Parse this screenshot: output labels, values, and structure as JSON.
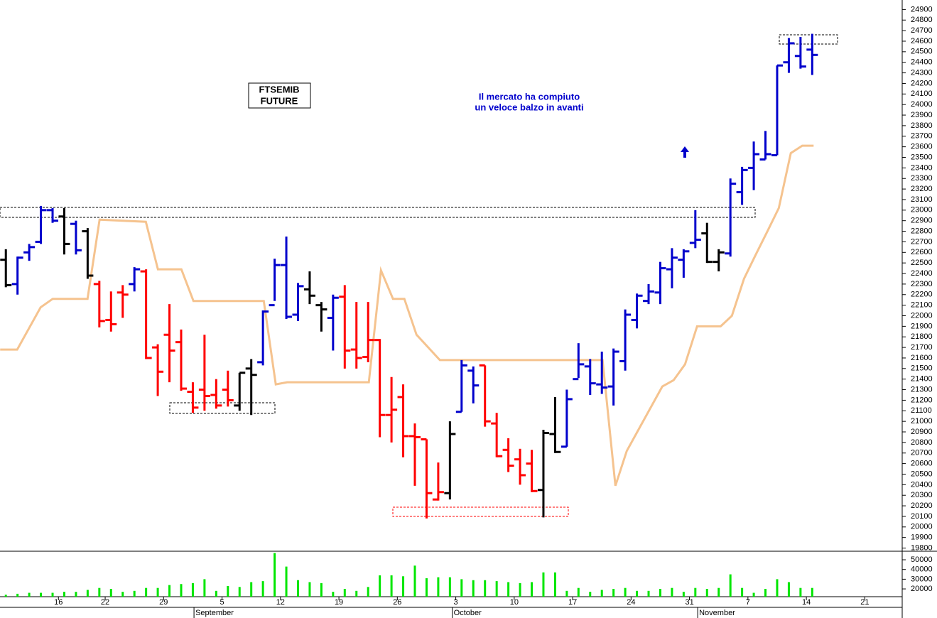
{
  "chart_data": {
    "type": "ohlc",
    "title_lines": [
      "FTSEMIB",
      "FUTURE"
    ],
    "annotation_lines": [
      "Il mercato ha compiuto",
      "un veloce balzo in avanti"
    ],
    "open": [
      22530,
      22300,
      22600,
      22700,
      23000,
      22940,
      22870,
      22800,
      22300,
      21960,
      22220,
      22300,
      22420,
      21700,
      21820,
      21750,
      21280,
      21300,
      21250,
      21300,
      21150,
      21500,
      21560,
      22100,
      22480,
      22010,
      22250,
      22100,
      21980,
      22180,
      21680,
      21610,
      21770,
      21060,
      21230,
      20860,
      20830,
      20260,
      20320,
      21090,
      21480,
      21530,
      20980,
      20730,
      20640,
      20600,
      20350,
      20880,
      20760,
      21400,
      21520,
      21350,
      21330,
      21570,
      21960,
      22140,
      22220,
      22440,
      22530,
      22690,
      22780,
      22510,
      22590,
      23170,
      23400,
      23480,
      23520,
      24400,
      24460,
      24520
    ],
    "high": [
      22630,
      22560,
      22680,
      23040,
      23020,
      23020,
      22900,
      22830,
      22330,
      22230,
      22290,
      22460,
      22440,
      21730,
      22110,
      21870,
      21370,
      21820,
      21400,
      21480,
      21460,
      21590,
      22050,
      22540,
      22750,
      22310,
      22420,
      22130,
      22200,
      22290,
      22130,
      22130,
      21780,
      21420,
      21350,
      20980,
      20830,
      20610,
      21000,
      21580,
      21520,
      21530,
      21080,
      20840,
      20740,
      20730,
      20920,
      21230,
      21300,
      21740,
      21590,
      21660,
      21690,
      22060,
      22210,
      22300,
      22510,
      22640,
      22630,
      23000,
      22880,
      22630,
      23300,
      23410,
      23650,
      23750,
      24370,
      24630,
      24640,
      24670
    ],
    "low": [
      22270,
      22200,
      22520,
      22680,
      22880,
      22580,
      22580,
      22350,
      21890,
      21850,
      21980,
      22230,
      21590,
      21240,
      21370,
      21290,
      21080,
      21100,
      21120,
      21140,
      21100,
      21060,
      21530,
      22140,
      21970,
      21950,
      22110,
      21850,
      21670,
      21500,
      21500,
      21560,
      20850,
      20800,
      20660,
      20390,
      20080,
      20250,
      20260,
      21090,
      21170,
      20950,
      20660,
      20520,
      20400,
      20330,
      20090,
      20700,
      20760,
      21410,
      21250,
      21260,
      21150,
      21480,
      21880,
      22110,
      22110,
      22260,
      22360,
      22640,
      22500,
      22420,
      22560,
      23050,
      23190,
      23480,
      23520,
      24300,
      24340,
      24280
    ],
    "close": [
      22290,
      22550,
      22650,
      23000,
      22900,
      22680,
      22620,
      22380,
      21950,
      21920,
      22200,
      22440,
      21600,
      21470,
      21670,
      21310,
      21130,
      21240,
      21150,
      21200,
      21460,
      21440,
      22040,
      22480,
      21990,
      22280,
      22190,
      22060,
      22170,
      21670,
      21600,
      21770,
      21060,
      21110,
      20860,
      20850,
      20320,
      20330,
      20880,
      21530,
      21340,
      21000,
      20670,
      20580,
      20490,
      20340,
      20890,
      20710,
      21210,
      21540,
      21360,
      21320,
      21660,
      22010,
      22190,
      22230,
      22450,
      22550,
      22610,
      22720,
      22510,
      22600,
      23250,
      23380,
      23530,
      23530,
      24370,
      24580,
      24360,
      24470
    ],
    "bar_colors": [
      "#000",
      "#00c",
      "#00c",
      "#00c",
      "#00c",
      "#000",
      "#00c",
      "#000",
      "#f00",
      "#f00",
      "#f00",
      "#00c",
      "#f00",
      "#f00",
      "#f00",
      "#f00",
      "#f00",
      "#f00",
      "#f00",
      "#f00",
      "#000",
      "#000",
      "#00c",
      "#00c",
      "#00c",
      "#00c",
      "#000",
      "#000",
      "#00c",
      "#f00",
      "#f00",
      "#f00",
      "#f00",
      "#f00",
      "#f00",
      "#f00",
      "#f00",
      "#f00",
      "#000",
      "#00c",
      "#00c",
      "#f00",
      "#f00",
      "#f00",
      "#f00",
      "#f00",
      "#000",
      "#000",
      "#00c",
      "#00c",
      "#00c",
      "#00c",
      "#00c",
      "#00c",
      "#00c",
      "#00c",
      "#00c",
      "#00c",
      "#00c",
      "#00c",
      "#000",
      "#000",
      "#00c",
      "#00c",
      "#00c",
      "#00c",
      "#00c",
      "#00c",
      "#00c",
      "#00c"
    ],
    "xlim": [
      -0.5,
      76.7
    ],
    "ylim": [
      19770,
      24990
    ],
    "yticks": [
      19800,
      19900,
      20000,
      20100,
      20200,
      20300,
      20400,
      20500,
      20600,
      20700,
      20800,
      20900,
      21000,
      21100,
      21200,
      21300,
      21400,
      21500,
      21600,
      21700,
      21800,
      21900,
      22000,
      22100,
      22200,
      22300,
      22400,
      22500,
      22600,
      22700,
      22800,
      22900,
      23000,
      23100,
      23200,
      23300,
      23400,
      23500,
      23600,
      23700,
      23800,
      23900,
      24000,
      24100,
      24200,
      24300,
      24400,
      24500,
      24600,
      24700,
      24800,
      24900
    ],
    "xticks": [
      {
        "value": 4.5,
        "label": "16"
      },
      {
        "value": 8.5,
        "label": "22"
      },
      {
        "value": 13.5,
        "label": "29"
      },
      {
        "value": 18.5,
        "label": "5"
      },
      {
        "value": 23.5,
        "label": "12"
      },
      {
        "value": 28.5,
        "label": "19"
      },
      {
        "value": 33.5,
        "label": "26"
      },
      {
        "value": 38.5,
        "label": "3"
      },
      {
        "value": 43.5,
        "label": "10"
      },
      {
        "value": 48.5,
        "label": "17"
      },
      {
        "value": 53.5,
        "label": "24"
      },
      {
        "value": 58.5,
        "label": "31"
      },
      {
        "value": 63.5,
        "label": "7"
      },
      {
        "value": 68.5,
        "label": "14"
      },
      {
        "value": 73.5,
        "label": "21"
      }
    ],
    "months": [
      {
        "value": 16.1,
        "label": "September"
      },
      {
        "value": 38.2,
        "label": "October"
      },
      {
        "value": 59.2,
        "label": "November"
      }
    ],
    "trail": {
      "color": "#f5c38f",
      "x": [
        -0.49,
        0.97,
        2.98,
        4.01,
        6.99,
        8.02,
        11.98,
        13.01,
        15.02,
        16.05,
        22.07,
        23.1,
        24.07,
        31.06,
        32.1,
        33.13,
        34.1,
        35.14,
        37.14,
        51.06,
        52.16,
        53.13,
        56.17,
        57.14,
        58.12,
        59.15,
        61.16,
        62.13,
        63.16,
        64.13,
        65.17,
        66.14,
        67.17,
        68.15,
        69.12
      ],
      "values": [
        21680,
        21680,
        22080,
        22160,
        22160,
        22910,
        22890,
        22440,
        22440,
        22140,
        22140,
        21350,
        21370,
        21370,
        22430,
        22160,
        22160,
        21820,
        21580,
        21580,
        20390,
        20720,
        21330,
        21390,
        21540,
        21900,
        21900,
        22000,
        22350,
        22570,
        22800,
        23020,
        23540,
        23610,
        23610
      ]
    },
    "volume": {
      "color": "#00e600",
      "values": [
        14000,
        15000,
        16000,
        16000,
        16000,
        17000,
        17000,
        19000,
        21000,
        20000,
        17000,
        18000,
        21000,
        21000,
        24000,
        25000,
        26000,
        30000,
        18000,
        23000,
        22000,
        27000,
        28000,
        57000,
        43000,
        29000,
        27000,
        26000,
        17000,
        20000,
        18000,
        22000,
        34000,
        34000,
        33000,
        44000,
        31000,
        32000,
        32000,
        30000,
        29000,
        29000,
        28000,
        27000,
        26000,
        27000,
        37000,
        37000,
        18000,
        21000,
        17000,
        19000,
        20000,
        21000,
        18000,
        18000,
        20000,
        21000,
        17000,
        21000,
        20000,
        21000,
        35000,
        21000,
        16000,
        20000,
        30000,
        27000,
        21000,
        21000
      ],
      "ylim": [
        12000,
        58800
      ],
      "yticks": [
        20000,
        30000,
        40000,
        50000
      ]
    }
  }
}
